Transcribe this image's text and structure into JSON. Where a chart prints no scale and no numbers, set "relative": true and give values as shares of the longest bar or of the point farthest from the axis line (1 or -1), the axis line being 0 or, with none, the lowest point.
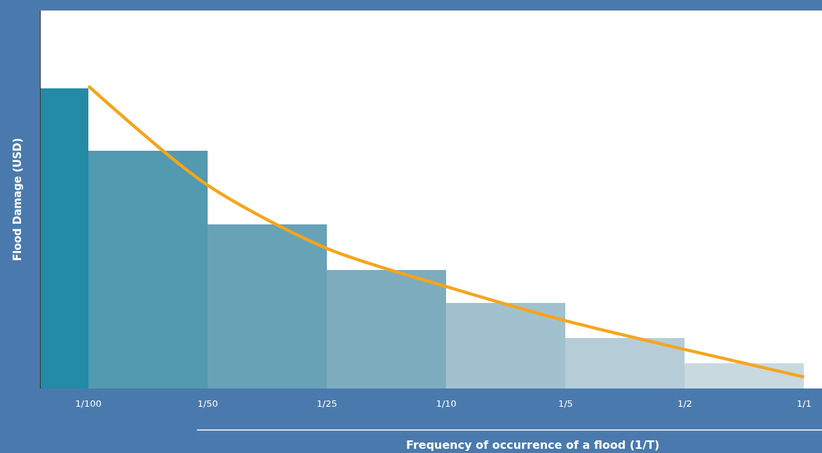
{
  "chart_data": {
    "type": "bar",
    "relative": true,
    "xlabel": "Frequency of occurrence of a flood (1/T)",
    "ylabel": "Flood Damage (USD)",
    "categories": [
      "1/100",
      "1/50",
      "1/25",
      "1/10",
      "1/5",
      "1/2",
      "1/1"
    ],
    "series": [
      {
        "colors": [
          "#238ba6",
          "#519aaf",
          "#67a2b6",
          "#7eacbf",
          "#a2c1ce",
          "#b6cdd8",
          "#c9d9e0"
        ],
        "values": [
          0.993,
          0.787,
          0.543,
          0.393,
          0.282,
          0.167,
          0.084
        ]
      },
      {
        "type": "line",
        "color": "#f5a51c",
        "marker": "none",
        "line_style": "solid",
        "values": [
          1.0,
          0.672,
          0.463,
          0.337,
          0.224,
          0.129,
          0.038
        ]
      }
    ]
  }
}
